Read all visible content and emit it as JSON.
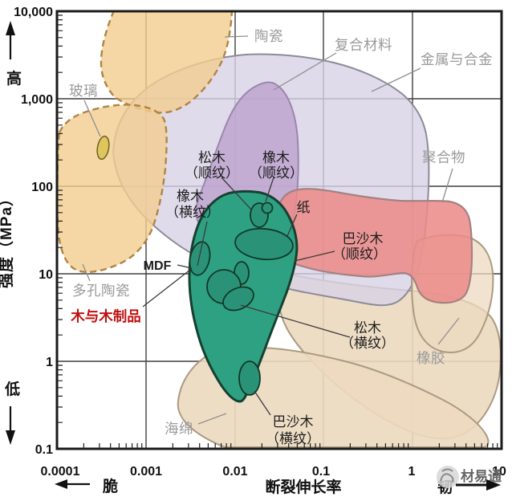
{
  "axes": {
    "y_title": "强度（MPa）",
    "y_high": "高",
    "y_low": "低",
    "x_title": "断裂伸长率",
    "x_brittle": "脆",
    "x_tough": "韧",
    "y_ticks": [
      "10,000",
      "1,000",
      "100",
      "10",
      "1",
      "0.1"
    ],
    "x_ticks": [
      "0.0001",
      "0.001",
      "0.01",
      "0.1",
      "1",
      "10"
    ]
  },
  "labels": {
    "ceramics": "陶瓷",
    "glass": "玻璃",
    "composites": "复合材料",
    "metals": "金属与合金",
    "polymers": "聚合物",
    "porous_ceramics": "多孔陶瓷",
    "wood_products": "木与木制品",
    "sponge": "海绵",
    "rubber": "橡胶",
    "paper": "纸",
    "mdf": "MDF",
    "pine_along_1": "松木",
    "pine_along_2": "（顺纹）",
    "oak_along_1": "橡木",
    "oak_along_2": "（顺纹）",
    "oak_across_1": "橡木",
    "oak_across_2": "（横纹）",
    "balsa_along_1": "巴沙木",
    "balsa_along_2": "（顺纹）",
    "pine_across_1": "松木",
    "pine_across_2": "（横纹）",
    "balsa_across_1": "巴沙木",
    "balsa_across_2": "（横纹）"
  },
  "watermark": "材易通",
  "colors": {
    "ceramics_fill": "#f3cd90",
    "ceramics_border": "#b08445",
    "metals_fill": "#d7d2e5",
    "metals_border": "#8d8a9b",
    "composites_fill": "#bea5cf",
    "composites_border": "#9b87ac",
    "polymers_fill": "#ec8b8a",
    "polymers_border": "#a58183",
    "foam_fill": "#ecd9bf",
    "foam_border": "#ab9b80",
    "wood_fill": "#2ea183",
    "wood_border": "#16402f",
    "glass_fill": "#dfc55e",
    "glass_border": "#6f611f",
    "highlight_red": "#c01010"
  },
  "chart_data": {
    "type": "area",
    "title": "",
    "xlabel": "断裂伸长率",
    "ylabel": "强度（MPa）",
    "xscale": "log",
    "yscale": "log",
    "xlim": [
      0.0001,
      10
    ],
    "ylim": [
      0.1,
      10000
    ],
    "x_tick_values": [
      0.0001,
      0.001,
      0.01,
      0.1,
      1,
      10
    ],
    "y_tick_values": [
      10000,
      1000,
      100,
      10,
      1,
      0.1
    ],
    "grid": true,
    "regions": [
      {
        "name": "陶瓷",
        "elongation": [
          0.0001,
          0.01
        ],
        "strength_MPa": [
          10,
          10000
        ],
        "style": "dashed-orange"
      },
      {
        "name": "多孔陶瓷",
        "elongation": [
          0.0001,
          0.0015
        ],
        "strength_MPa": [
          10,
          800
        ],
        "style": "dashed-orange"
      },
      {
        "name": "玻璃",
        "elongation": [
          0.0004,
          0.0005
        ],
        "strength_MPa": [
          190,
          390
        ],
        "style": "yellow"
      },
      {
        "name": "金属与合金",
        "elongation": [
          0.0005,
          1.5
        ],
        "strength_MPa": [
          3.5,
          2700
        ],
        "style": "lavender"
      },
      {
        "name": "复合材料",
        "elongation": [
          0.0074,
          0.052
        ],
        "strength_MPa": [
          11,
          1550
        ],
        "style": "purple"
      },
      {
        "name": "聚合物",
        "elongation": [
          0.025,
          4.7
        ],
        "strength_MPa": [
          4.7,
          98
        ],
        "style": "red"
      },
      {
        "name": "木与木制品",
        "elongation": [
          0.003,
          0.051
        ],
        "strength_MPa": [
          0.33,
          85
        ],
        "style": "green"
      },
      {
        "name": "海绵",
        "elongation": [
          0.002,
          8.7
        ],
        "strength_MPa": [
          0.105,
          5.6
        ],
        "style": "tan"
      },
      {
        "name": "橡胶",
        "elongation": [
          1.0,
          8.0
        ],
        "strength_MPa": [
          1.2,
          28
        ],
        "style": "tan"
      }
    ],
    "wood_items": [
      {
        "name": "松木（顺纹）",
        "elongation": 0.019,
        "strength_MPa": 47
      },
      {
        "name": "橡木（顺纹）",
        "elongation": 0.022,
        "strength_MPa": 55
      },
      {
        "name": "橡木（横纹）",
        "elongation": 0.004,
        "strength_MPa": 20
      },
      {
        "name": "纸",
        "elongation": 0.035,
        "strength_MPa": 22
      },
      {
        "name": "MDF",
        "elongation": 0.004,
        "strength_MPa": 15
      },
      {
        "name": "巴沙木（顺纹）",
        "elongation": 0.05,
        "strength_MPa": 14
      },
      {
        "name": "松木（横纹）",
        "elongation": 0.017,
        "strength_MPa": 3.6
      },
      {
        "name": "巴沙木（横纹）",
        "elongation": 0.015,
        "strength_MPa": 0.56
      }
    ]
  }
}
